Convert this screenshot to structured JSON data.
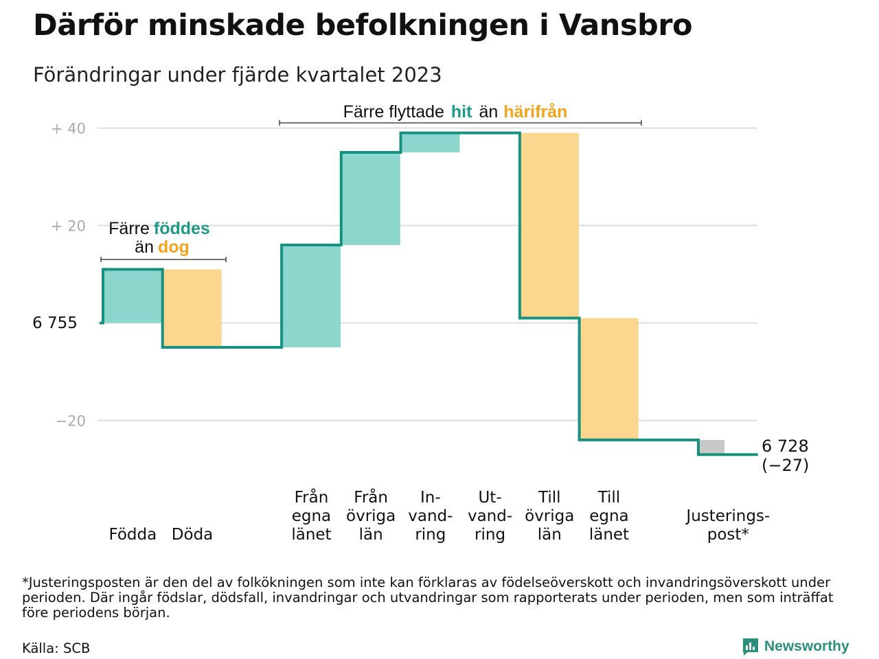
{
  "header": {
    "title": "Därför minskade befolkningen i Vansbro",
    "subtitle": "Förändringar under fjärde kvartalet 2023"
  },
  "colors": {
    "teal_line": "#16917f",
    "teal_fill": "#8dd6cd",
    "orange_fill": "#fad68e",
    "teal_text": "#1e9a87",
    "orange_text": "#f3a31c",
    "grey_fill": "#c8c8c8",
    "grid": "#dddddd"
  },
  "annotations": {
    "births_deaths": {
      "line1_prefix": "Färre",
      "line1_highlight": "föddes",
      "line2_prefix": "än",
      "line2_highlight": "dog"
    },
    "migration": {
      "prefix": "Färre flyttade",
      "highlight1": "hit",
      "middle": "än",
      "highlight2": "härifrån"
    }
  },
  "chart_data": {
    "type": "waterfall",
    "start_value": 6755,
    "start_label": "6  755",
    "end_value": 6728,
    "end_label_line1": "6 728",
    "end_label_line2": "(−27)",
    "y_ticks": [
      {
        "value": 40,
        "label": "+  40"
      },
      {
        "value": 20,
        "label": "+  20"
      },
      {
        "value": 0,
        "label": ""
      },
      {
        "value": -20,
        "label": "−20"
      }
    ],
    "ylim": [
      -23,
      41
    ],
    "steps": [
      {
        "label_lines": [
          "Födda"
        ],
        "change": 11,
        "kind": "teal"
      },
      {
        "label_lines": [
          "Döda"
        ],
        "change": -16,
        "kind": "orange"
      },
      {
        "label_lines": [],
        "change": 0,
        "kind": "gap"
      },
      {
        "label_lines": [
          "Från",
          "egna",
          "länet"
        ],
        "change": 21,
        "kind": "teal"
      },
      {
        "label_lines": [
          "Från",
          "övriga",
          "län"
        ],
        "change": 19,
        "kind": "teal"
      },
      {
        "label_lines": [
          "In-",
          "vand-",
          "ring"
        ],
        "change": 4,
        "kind": "teal"
      },
      {
        "label_lines": [
          "Ut-",
          "vand-",
          "ring"
        ],
        "change": 0,
        "kind": "teal"
      },
      {
        "label_lines": [
          "Till",
          "övriga",
          "län"
        ],
        "change": -38,
        "kind": "orange"
      },
      {
        "label_lines": [
          "Till",
          "egna",
          "länet"
        ],
        "change": -25,
        "kind": "orange"
      },
      {
        "label_lines": [],
        "change": 0,
        "kind": "gap"
      },
      {
        "label_lines": [
          "Justerings-",
          "post*"
        ],
        "change": -3,
        "kind": "grey"
      }
    ]
  },
  "footer": {
    "footnote": "*Justeringsposten är den del av folkökningen som inte kan förklaras av födelseöverskott och invandringsöverskott under perioden. Där ingår födslar, dödsfall, invandringar och utvandringar som rapporterats under perioden, men som inträffat före periodens början.",
    "source": "Källa: SCB",
    "logo_text": "Newsworthy"
  }
}
